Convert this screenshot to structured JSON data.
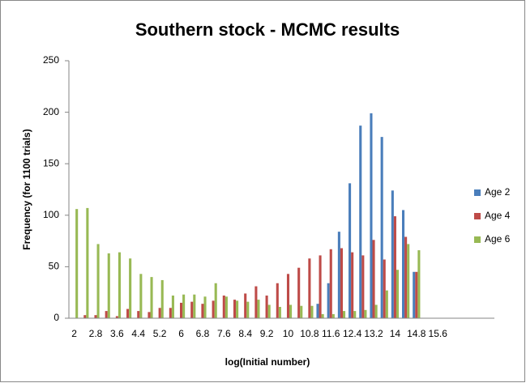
{
  "chart_data": {
    "type": "bar",
    "title": "Southern stock - MCMC results",
    "x_label": "log(Initial number)",
    "y_label": "Frequency  (for 1100 trials)",
    "categories": [
      "2",
      null,
      "2.8",
      null,
      "3.6",
      null,
      "4.4",
      null,
      "5.2",
      null,
      "6",
      null,
      "6.8",
      null,
      "7.6",
      null,
      "8.4",
      null,
      "9.2",
      null,
      "10",
      null,
      "10.8",
      null,
      "11.6",
      null,
      "12.4",
      null,
      "13.2",
      null,
      "14",
      null,
      "14.8",
      null,
      "15.6",
      null
    ],
    "series": [
      {
        "name": "Age 2",
        "color": "#4a7ebb",
        "values": [
          0,
          0,
          0,
          0,
          0,
          0,
          0,
          0,
          0,
          0,
          0,
          0,
          0,
          0,
          0,
          0,
          0,
          0,
          0,
          0,
          0,
          0,
          0,
          14,
          34,
          84,
          131,
          187,
          199,
          176,
          124,
          105,
          45,
          0,
          0,
          0
        ]
      },
      {
        "name": "Age 4",
        "color": "#be4b48",
        "values": [
          0,
          3,
          3,
          7,
          2,
          9,
          7,
          6,
          10,
          10,
          15,
          16,
          14,
          17,
          22,
          18,
          24,
          31,
          22,
          34,
          43,
          49,
          58,
          61,
          67,
          68,
          64,
          61,
          76,
          57,
          99,
          79,
          45,
          0,
          0,
          0
        ]
      },
      {
        "name": "Age 6",
        "color": "#98b954",
        "values": [
          106,
          107,
          72,
          63,
          64,
          58,
          43,
          40,
          37,
          22,
          23,
          23,
          21,
          34,
          21,
          17,
          16,
          18,
          13,
          11,
          13,
          12,
          12,
          4,
          4,
          7,
          7,
          8,
          13,
          27,
          47,
          72,
          66,
          0,
          0,
          0
        ]
      }
    ],
    "ylim": [
      0,
      250
    ],
    "yticks": [
      0,
      50,
      100,
      150,
      200,
      250
    ],
    "legend": "right"
  }
}
